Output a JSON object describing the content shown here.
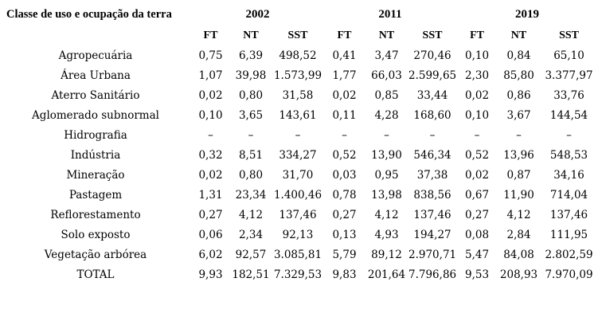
{
  "table": {
    "corner_label": "Classe de uso e ocupação da terra",
    "year_groups": [
      {
        "year": "2002",
        "columns": [
          "FT",
          "NT",
          "SST"
        ]
      },
      {
        "year": "2011",
        "columns": [
          "FT",
          "NT",
          "SST"
        ]
      },
      {
        "year": "2019",
        "columns": [
          "FT",
          "NT",
          "SST"
        ]
      }
    ],
    "rows": [
      {
        "label": "Agropecuária",
        "values": [
          "0,75",
          "6,39",
          "498,52",
          "0,41",
          "3,47",
          "270,46",
          "0,10",
          "0,84",
          "65,10"
        ]
      },
      {
        "label": "Área Urbana",
        "values": [
          "1,07",
          "39,98",
          "1.573,99",
          "1,77",
          "66,03",
          "2.599,65",
          "2,30",
          "85,80",
          "3.377,97"
        ]
      },
      {
        "label": "Aterro Sanitário",
        "values": [
          "0,02",
          "0,80",
          "31,58",
          "0,02",
          "0,85",
          "33,44",
          "0,02",
          "0,86",
          "33,76"
        ]
      },
      {
        "label": "Aglomerado subnormal",
        "values": [
          "0,10",
          "3,65",
          "143,61",
          "0,11",
          "4,28",
          "168,60",
          "0,10",
          "3,67",
          "144,54"
        ]
      },
      {
        "label": "Hidrografia",
        "values": [
          "–",
          "–",
          "–",
          "–",
          "–",
          "–",
          "–",
          "–",
          "–"
        ]
      },
      {
        "label": "Indústria",
        "values": [
          "0,32",
          "8,51",
          "334,27",
          "0,52",
          "13,90",
          "546,34",
          "0,52",
          "13,96",
          "548,53"
        ]
      },
      {
        "label": "Mineração",
        "values": [
          "0,02",
          "0,80",
          "31,70",
          "0,03",
          "0,95",
          "37,38",
          "0,02",
          "0,87",
          "34,16"
        ]
      },
      {
        "label": "Pastagem",
        "values": [
          "1,31",
          "23,34",
          "1.400,46",
          "0,78",
          "13,98",
          "838,56",
          "0,67",
          "11,90",
          "714,04"
        ]
      },
      {
        "label": "Reflorestamento",
        "values": [
          "0,27",
          "4,12",
          "137,46",
          "0,27",
          "4,12",
          "137,46",
          "0,27",
          "4,12",
          "137,46"
        ]
      },
      {
        "label": "Solo exposto",
        "values": [
          "0,06",
          "2,34",
          "92,13",
          "0,13",
          "4,93",
          "194,27",
          "0,08",
          "2,84",
          "111,95"
        ]
      },
      {
        "label": "Vegetação arbórea",
        "values": [
          "6,02",
          "92,57",
          "3.085,81",
          "5,79",
          "89,12",
          "2.970,71",
          "5,47",
          "84,08",
          "2.802,59"
        ]
      },
      {
        "label": "TOTAL",
        "values": [
          "9,93",
          "182,51",
          "7.329,53",
          "9,83",
          "201,64",
          "7.796,86",
          "9,53",
          "208,93",
          "7.970,09"
        ]
      }
    ]
  }
}
